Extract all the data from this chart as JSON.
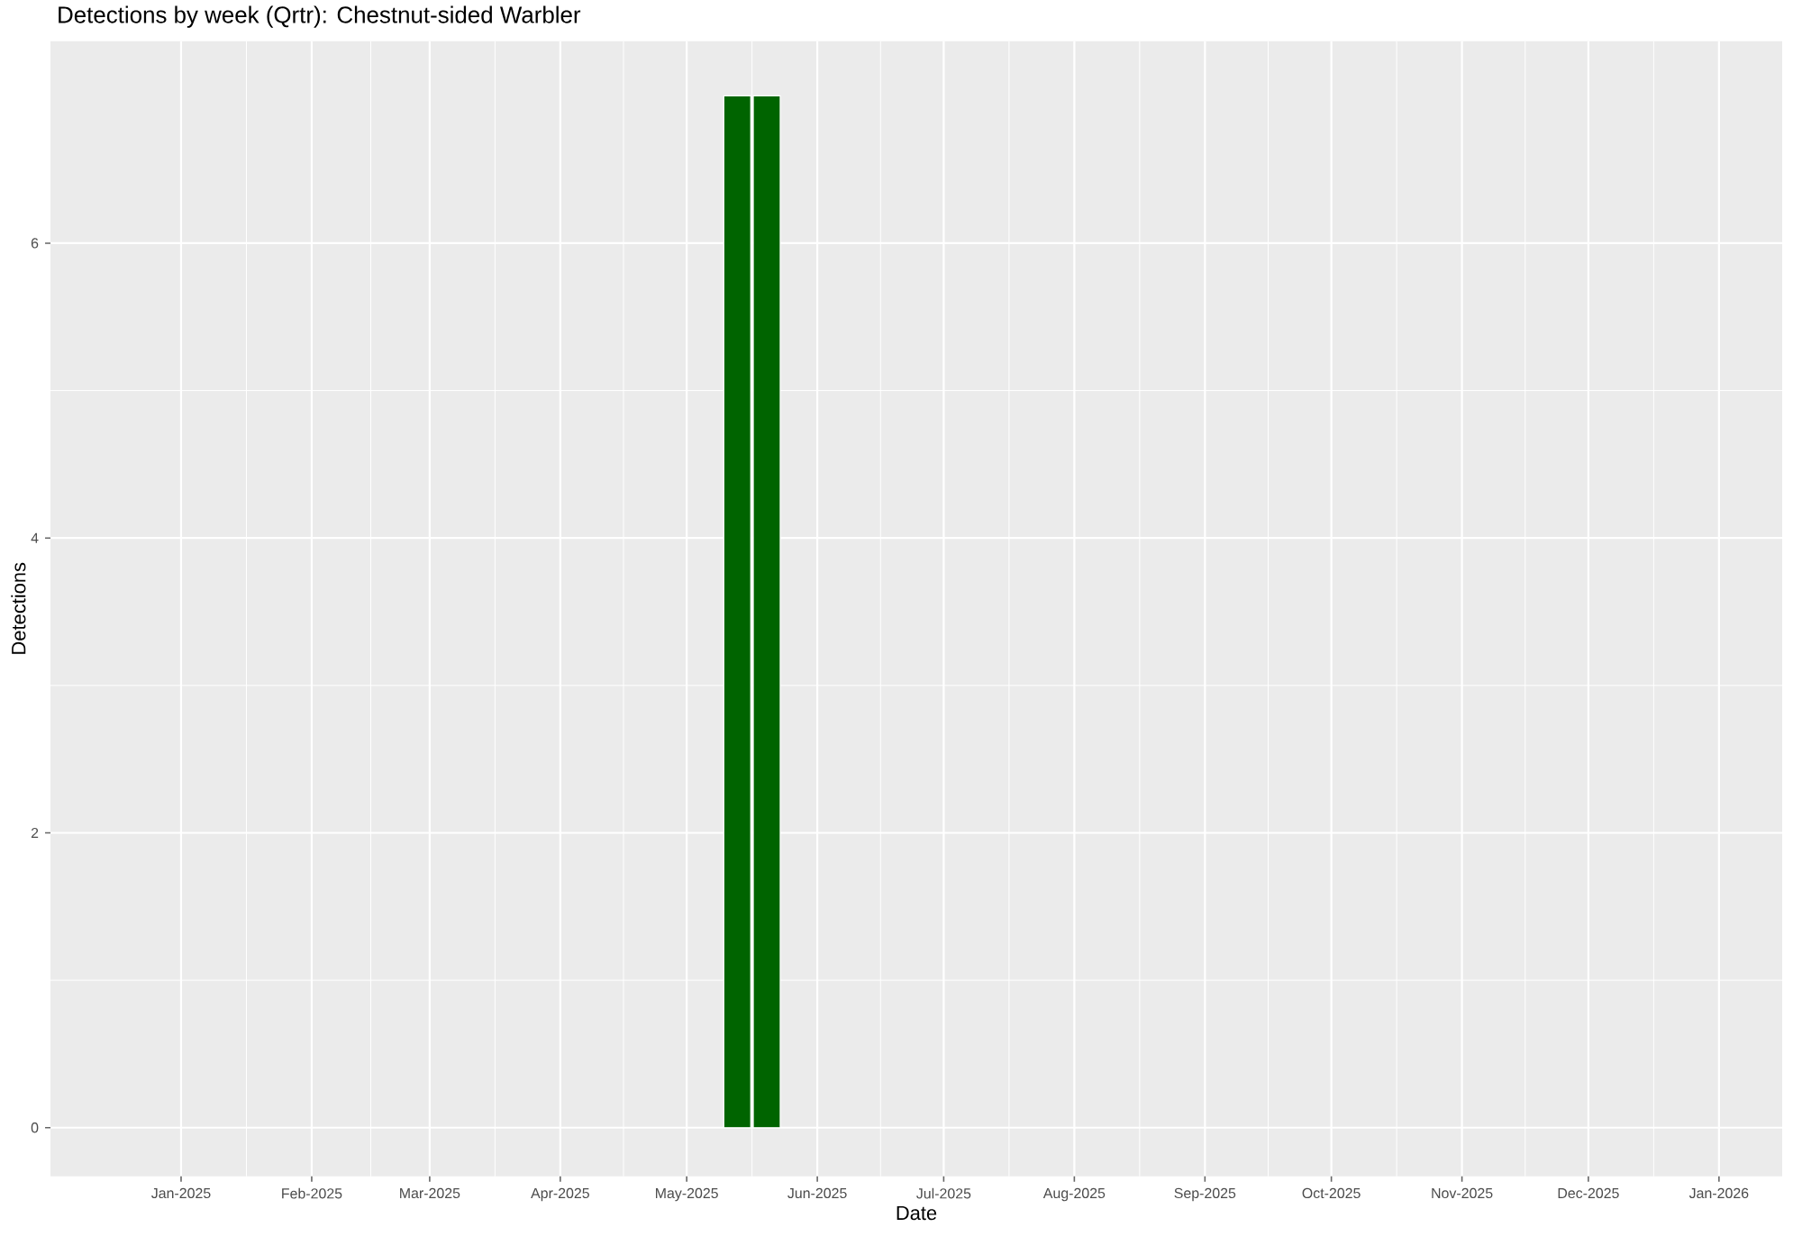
{
  "chart_data": {
    "type": "bar",
    "title": "Detections by week (Qrtr): Chestnut-sided Warbler",
    "xlabel": "Date",
    "ylabel": "Detections",
    "x": [
      "2025-05-13",
      "2025-05-20"
    ],
    "values": [
      7,
      7
    ],
    "color": "#006400",
    "xlim": [
      "2024-12-01",
      "2026-01-16"
    ],
    "xticks": [
      {
        "value": "2025-01-01",
        "label": "Jan-2025"
      },
      {
        "value": "2025-02-01",
        "label": "Feb-2025"
      },
      {
        "value": "2025-03-01",
        "label": "Mar-2025"
      },
      {
        "value": "2025-04-01",
        "label": "Apr-2025"
      },
      {
        "value": "2025-05-01",
        "label": "May-2025"
      },
      {
        "value": "2025-06-01",
        "label": "Jun-2025"
      },
      {
        "value": "2025-07-01",
        "label": "Jul-2025"
      },
      {
        "value": "2025-08-01",
        "label": "Aug-2025"
      },
      {
        "value": "2025-09-01",
        "label": "Sep-2025"
      },
      {
        "value": "2025-10-01",
        "label": "Oct-2025"
      },
      {
        "value": "2025-11-01",
        "label": "Nov-2025"
      },
      {
        "value": "2025-12-01",
        "label": "Dec-2025"
      },
      {
        "value": "2026-01-01",
        "label": "Jan-2026"
      }
    ],
    "ylim": [
      -0.33,
      7.37
    ],
    "yticks": [
      0,
      2,
      4,
      6
    ],
    "grid": true
  }
}
